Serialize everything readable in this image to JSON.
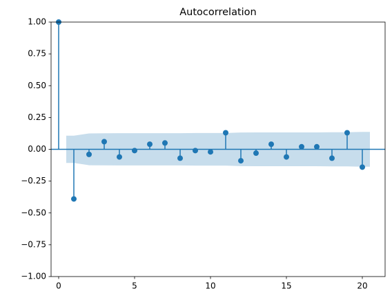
{
  "chart_data": {
    "type": "stem",
    "title": "Autocorrelation",
    "color": "#1f77b4",
    "x": [
      0,
      1,
      2,
      3,
      4,
      5,
      6,
      7,
      8,
      9,
      10,
      11,
      12,
      13,
      14,
      15,
      16,
      17,
      18,
      19,
      20
    ],
    "values": [
      1.0,
      -0.39,
      -0.04,
      0.06,
      -0.06,
      -0.01,
      0.04,
      0.05,
      -0.07,
      -0.01,
      -0.02,
      0.13,
      -0.09,
      -0.03,
      0.04,
      -0.06,
      0.02,
      0.02,
      -0.07,
      0.13,
      -0.14
    ],
    "band": {
      "x": [
        0.5,
        1,
        2,
        3,
        4,
        5,
        6,
        7,
        8,
        9,
        10,
        11,
        12,
        13,
        14,
        15,
        16,
        17,
        18,
        19,
        20,
        20.5
      ],
      "upper": [
        0.107,
        0.107,
        0.125,
        0.126,
        0.127,
        0.127,
        0.127,
        0.127,
        0.127,
        0.128,
        0.128,
        0.128,
        0.132,
        0.133,
        0.133,
        0.133,
        0.133,
        0.133,
        0.134,
        0.134,
        0.137,
        0.137
      ],
      "lower": [
        -0.107,
        -0.107,
        -0.125,
        -0.126,
        -0.127,
        -0.127,
        -0.127,
        -0.127,
        -0.127,
        -0.128,
        -0.128,
        -0.128,
        -0.132,
        -0.133,
        -0.133,
        -0.133,
        -0.133,
        -0.133,
        -0.134,
        -0.134,
        -0.137,
        -0.137
      ]
    },
    "xlim": [
      -0.5,
      21.5
    ],
    "ylim": [
      -1,
      1
    ],
    "xticks": [
      0,
      5,
      10,
      15,
      20
    ],
    "yticks": [
      {
        "value": -1,
        "label": "−1.00"
      },
      {
        "value": -0.75,
        "label": "−0.75"
      },
      {
        "value": -0.5,
        "label": "−0.50"
      },
      {
        "value": -0.25,
        "label": "−0.25"
      },
      {
        "value": 0,
        "label": "0.00"
      },
      {
        "value": 0.25,
        "label": "0.25"
      },
      {
        "value": 0.5,
        "label": "0.50"
      },
      {
        "value": 0.75,
        "label": "0.75"
      },
      {
        "value": 1,
        "label": "1.00"
      }
    ]
  }
}
